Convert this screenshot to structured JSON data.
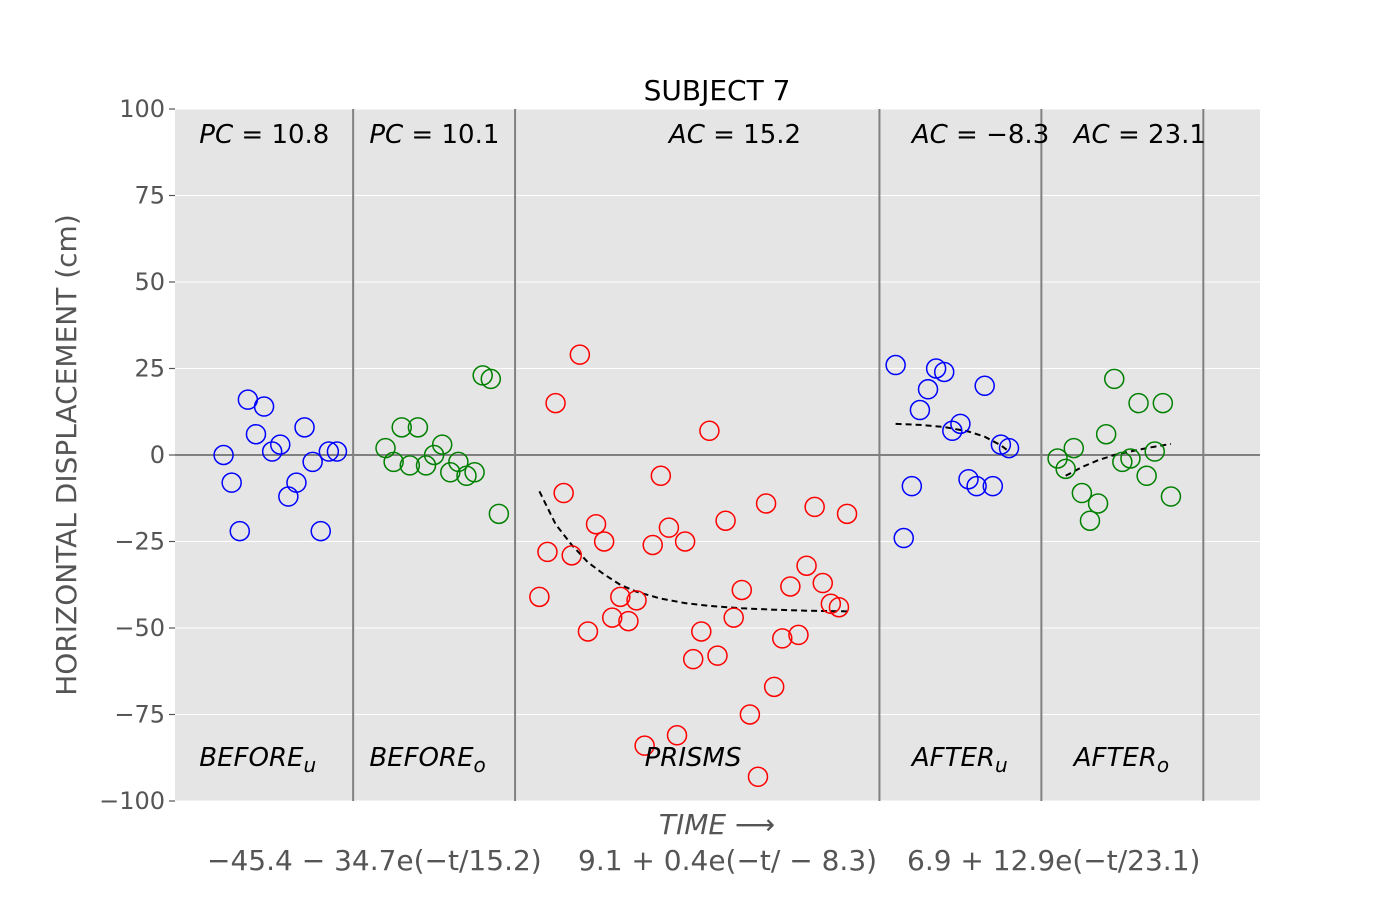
{
  "chart_data": {
    "type": "scatter",
    "title": "SUBJECT 7",
    "xlabel": "TIME ⟶",
    "ylabel": "HORIZONTAL DISPLACEMENT (cm)",
    "xlim": [
      0,
      67
    ],
    "ylim": [
      -100,
      100
    ],
    "yticks": [
      100,
      75,
      50,
      25,
      0,
      -25,
      -50,
      -75,
      -100
    ],
    "ytick_labels": [
      "100",
      "75",
      "50",
      "25",
      "0",
      "−25",
      "−50",
      "−75",
      "−100"
    ],
    "grid": true,
    "phase_boundaries": [
      11,
      21,
      43.5,
      53.5,
      63.5
    ],
    "colors": {
      "background": "#e5e5e5",
      "grid": "#ffffff",
      "boundary": "#808080",
      "blue": "#0000ff",
      "green": "#008000",
      "red": "#ff0000",
      "fit": "#000000"
    },
    "top_annotations": [
      {
        "base": "PC",
        "value": "10.8",
        "x": 1.5
      },
      {
        "base": "PC",
        "value": "10.1",
        "x": 12
      },
      {
        "base": "AC",
        "value": "15.2",
        "x": 30.5
      },
      {
        "base": "AC",
        "value": "−8.3",
        "x": 45.5
      },
      {
        "base": "AC",
        "value": "23.1",
        "x": 55.5
      }
    ],
    "bottom_annotations": [
      {
        "base": "BEFORE",
        "sub": "u",
        "x": 1.5
      },
      {
        "base": "BEFORE",
        "sub": "o",
        "x": 12
      },
      {
        "base": "PRISMS",
        "sub": "",
        "x": 29
      },
      {
        "base": "AFTER",
        "sub": "u",
        "x": 45.5
      },
      {
        "base": "AFTER",
        "sub": "o",
        "x": 55.5
      }
    ],
    "formulas": [
      "−45.4 − 34.7e(−t/15.2)",
      "9.1 + 0.4e(−t/ − 8.3)",
      "6.9 + 12.9e(−t/23.1)"
    ],
    "series": [
      {
        "color": "blue",
        "points": [
          [
            3,
            0
          ],
          [
            3.5,
            -8
          ],
          [
            4,
            -22
          ],
          [
            4.5,
            16
          ],
          [
            5,
            6
          ],
          [
            5.5,
            14
          ],
          [
            6,
            1
          ],
          [
            6.5,
            3
          ],
          [
            7,
            -12
          ],
          [
            7.5,
            -8
          ],
          [
            8,
            8
          ],
          [
            8.5,
            -2
          ],
          [
            9,
            -22
          ],
          [
            9.5,
            1
          ],
          [
            10,
            1
          ]
        ]
      },
      {
        "color": "green",
        "points": [
          [
            13,
            2
          ],
          [
            13.5,
            -2
          ],
          [
            14,
            8
          ],
          [
            14.5,
            -3
          ],
          [
            15,
            8
          ],
          [
            15.5,
            -3
          ],
          [
            16,
            0
          ],
          [
            16.5,
            3
          ],
          [
            17,
            -5
          ],
          [
            17.5,
            -2
          ],
          [
            18,
            -6
          ],
          [
            18.5,
            -5
          ],
          [
            19,
            23
          ],
          [
            19.5,
            22
          ],
          [
            20,
            -17
          ]
        ]
      },
      {
        "color": "red",
        "points": [
          [
            22.5,
            -41
          ],
          [
            23,
            -28
          ],
          [
            23.5,
            15
          ],
          [
            24,
            -11
          ],
          [
            24.5,
            -29
          ],
          [
            25,
            29
          ],
          [
            25.5,
            -51
          ],
          [
            26,
            -20
          ],
          [
            26.5,
            -25
          ],
          [
            27,
            -47
          ],
          [
            27.5,
            -41
          ],
          [
            28,
            -48
          ],
          [
            28.5,
            -42
          ],
          [
            29,
            -84
          ],
          [
            29.5,
            -26
          ],
          [
            30,
            -6
          ],
          [
            30.5,
            -21
          ],
          [
            31,
            -81
          ],
          [
            31.5,
            -25
          ],
          [
            32,
            -59
          ],
          [
            32.5,
            -51
          ],
          [
            33,
            7
          ],
          [
            33.5,
            -58
          ],
          [
            34,
            -19
          ],
          [
            34.5,
            -47
          ],
          [
            35,
            -39
          ],
          [
            35.5,
            -75
          ],
          [
            36,
            -93
          ],
          [
            36.5,
            -14
          ],
          [
            37,
            -67
          ],
          [
            37.5,
            -53
          ],
          [
            38,
            -38
          ],
          [
            38.5,
            -52
          ],
          [
            39,
            -32
          ],
          [
            39.5,
            -15
          ],
          [
            40,
            -37
          ],
          [
            40.5,
            -43
          ],
          [
            41,
            -44
          ],
          [
            41.5,
            -17
          ]
        ]
      },
      {
        "color": "blue",
        "points": [
          [
            44.5,
            26
          ],
          [
            45,
            -24
          ],
          [
            45.5,
            -9
          ],
          [
            46,
            13
          ],
          [
            46.5,
            19
          ],
          [
            47,
            25
          ],
          [
            47.5,
            24
          ],
          [
            48,
            7
          ],
          [
            48.5,
            9
          ],
          [
            49,
            -7
          ],
          [
            49.5,
            -9
          ],
          [
            50,
            20
          ],
          [
            50.5,
            -9
          ],
          [
            51,
            3
          ],
          [
            51.5,
            2
          ]
        ]
      },
      {
        "color": "green",
        "points": [
          [
            54.5,
            -1
          ],
          [
            55,
            -4
          ],
          [
            55.5,
            2
          ],
          [
            56,
            -11
          ],
          [
            56.5,
            -19
          ],
          [
            57,
            -14
          ],
          [
            57.5,
            6
          ],
          [
            58,
            22
          ],
          [
            58.5,
            -2
          ],
          [
            59,
            -1
          ],
          [
            59.5,
            15
          ],
          [
            60,
            -6
          ],
          [
            60.5,
            1
          ],
          [
            61,
            15
          ],
          [
            61.5,
            -12
          ]
        ]
      }
    ],
    "fits": [
      {
        "x": [
          22.5,
          23.5,
          24.5,
          25.5,
          26.5,
          27.5,
          28.5,
          30,
          31.5,
          33,
          35,
          37,
          39,
          41.5
        ],
        "y": [
          -10.5,
          -20,
          -26,
          -31,
          -34.5,
          -37.5,
          -39.5,
          -41.5,
          -42.8,
          -43.6,
          -44.3,
          -44.7,
          -45,
          -45.2
        ]
      },
      {
        "x": [
          44.5,
          46,
          47.5,
          49,
          50,
          51,
          51.5
        ],
        "y": [
          9,
          8.7,
          8.1,
          6.8,
          5.3,
          2.8,
          1
        ]
      },
      {
        "x": [
          55,
          56,
          57,
          58,
          59,
          60,
          61.5
        ],
        "y": [
          -6,
          -3.5,
          -1.5,
          0,
          1,
          2,
          3.2
        ]
      }
    ]
  }
}
